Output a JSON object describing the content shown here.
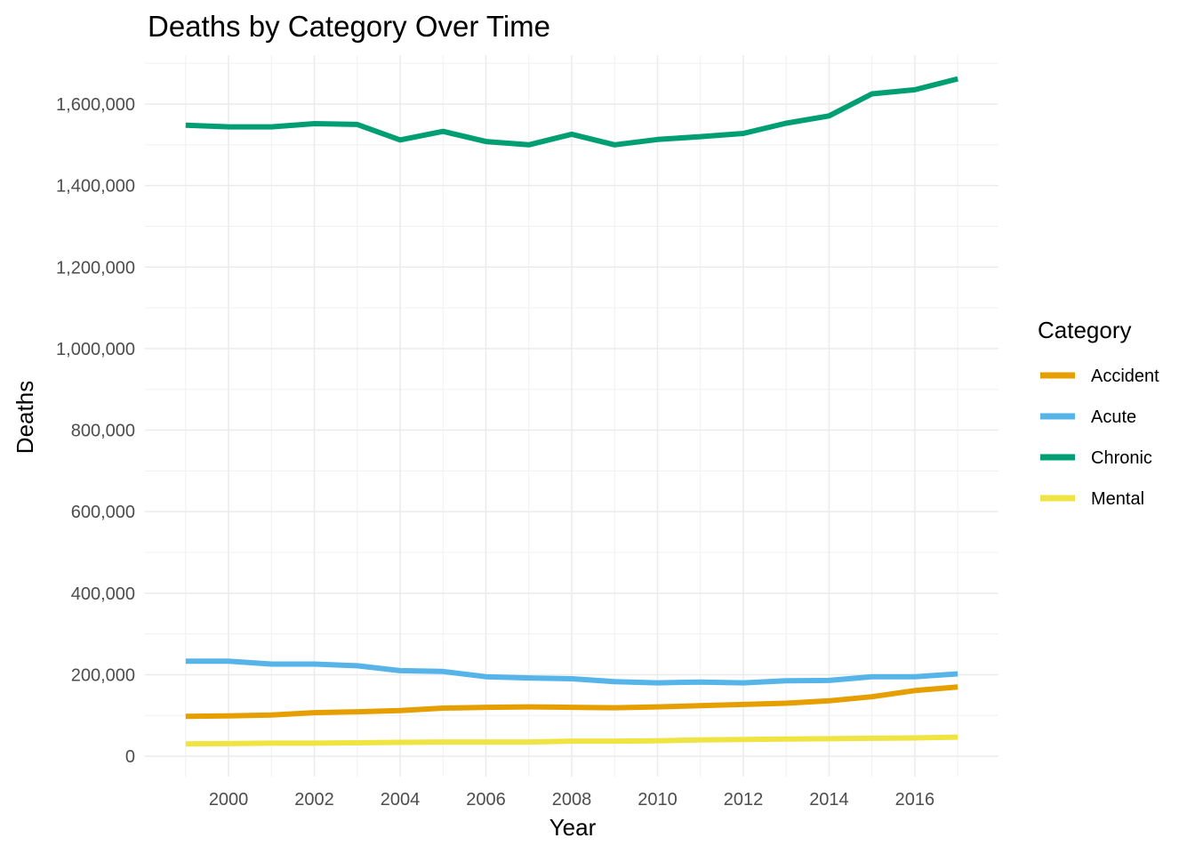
{
  "chart_data": {
    "type": "line",
    "title": "Deaths by Category Over Time",
    "xlabel": "Year",
    "ylabel": "Deaths",
    "xlim": [
      1998.05,
      2017.95
    ],
    "ylim": [
      -50000,
      1720000
    ],
    "x_ticks": [
      2000,
      2002,
      2004,
      2006,
      2008,
      2010,
      2012,
      2014,
      2016
    ],
    "x_tick_labels": [
      "2000",
      "2002",
      "2004",
      "2006",
      "2008",
      "2010",
      "2012",
      "2014",
      "2016"
    ],
    "y_ticks": [
      0,
      200000,
      400000,
      600000,
      800000,
      1000000,
      1200000,
      1400000,
      1600000
    ],
    "y_tick_labels": [
      "0",
      "200,000",
      "400,000",
      "600,000",
      "800,000",
      "1,000,000",
      "1,200,000",
      "1,400,000",
      "1,600,000"
    ],
    "grid": true,
    "legend": {
      "title": "Category",
      "placement": "right"
    },
    "x": [
      1999,
      2000,
      2001,
      2002,
      2003,
      2004,
      2005,
      2006,
      2007,
      2008,
      2009,
      2010,
      2011,
      2012,
      2013,
      2014,
      2015,
      2016,
      2017
    ],
    "series": [
      {
        "name": "Accident",
        "color": "#E69F00",
        "values": [
          98000,
          99000,
          101000,
          107000,
          109000,
          112000,
          118000,
          120000,
          121000,
          120000,
          119000,
          121000,
          124000,
          127000,
          130000,
          136000,
          146000,
          161000,
          170000
        ]
      },
      {
        "name": "Acute",
        "color": "#56B4E9",
        "values": [
          233000,
          233000,
          226000,
          226000,
          222000,
          210000,
          208000,
          195000,
          192000,
          190000,
          183000,
          180000,
          182000,
          180000,
          185000,
          186000,
          195000,
          195000,
          202000
        ]
      },
      {
        "name": "Chronic",
        "color": "#009E73",
        "values": [
          1548000,
          1544000,
          1544000,
          1552000,
          1550000,
          1512000,
          1533000,
          1508000,
          1500000,
          1526000,
          1500000,
          1513000,
          1520000,
          1528000,
          1553000,
          1571000,
          1625000,
          1635000,
          1662000
        ]
      },
      {
        "name": "Mental",
        "color": "#F0E442",
        "values": [
          30000,
          31000,
          32000,
          32000,
          33000,
          34000,
          35000,
          35000,
          35000,
          37000,
          37000,
          38000,
          40000,
          41000,
          42000,
          43000,
          44000,
          45000,
          47000
        ]
      }
    ]
  }
}
